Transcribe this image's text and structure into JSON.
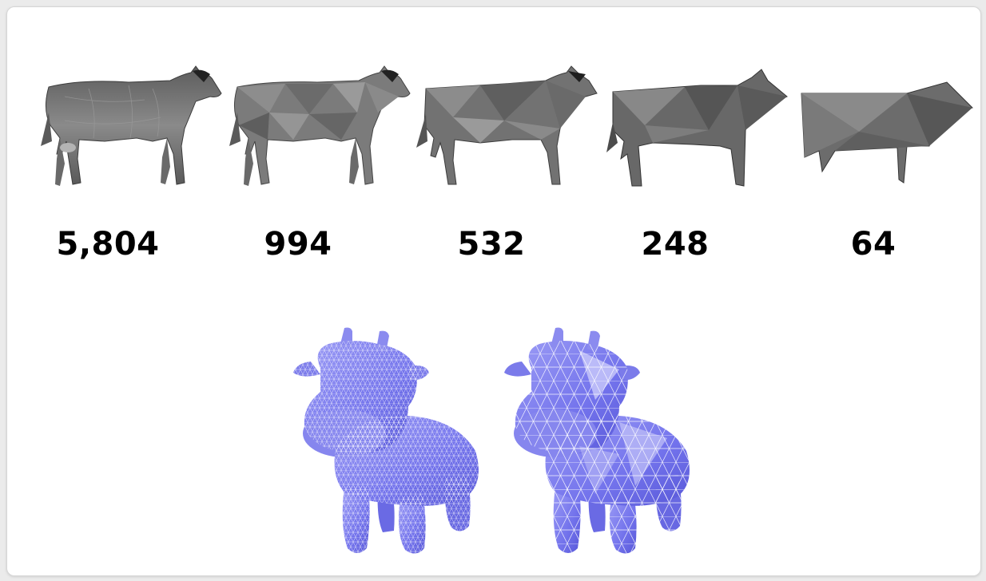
{
  "face_counts": [
    "5,804",
    "994",
    "532",
    "248",
    "64"
  ],
  "colors": {
    "cow_gray_dark": "#4f4f4f",
    "cow_gray_mid": "#7a7a7a",
    "cow_gray_light": "#a8a8a8",
    "toy_blue": "#7878ee",
    "toy_blue_light": "#b9b9f7",
    "mesh_line": "#ffffff"
  },
  "icons": {
    "cow_1": "high-detail-cow-mesh",
    "cow_2": "medium-detail-cow-mesh",
    "cow_3": "low-detail-cow-mesh",
    "cow_4": "very-low-detail-cow-mesh",
    "cow_5": "coarse-cow-mesh",
    "toy_left": "dense-cow-toy-mesh",
    "toy_right": "simplified-cow-toy-mesh"
  }
}
